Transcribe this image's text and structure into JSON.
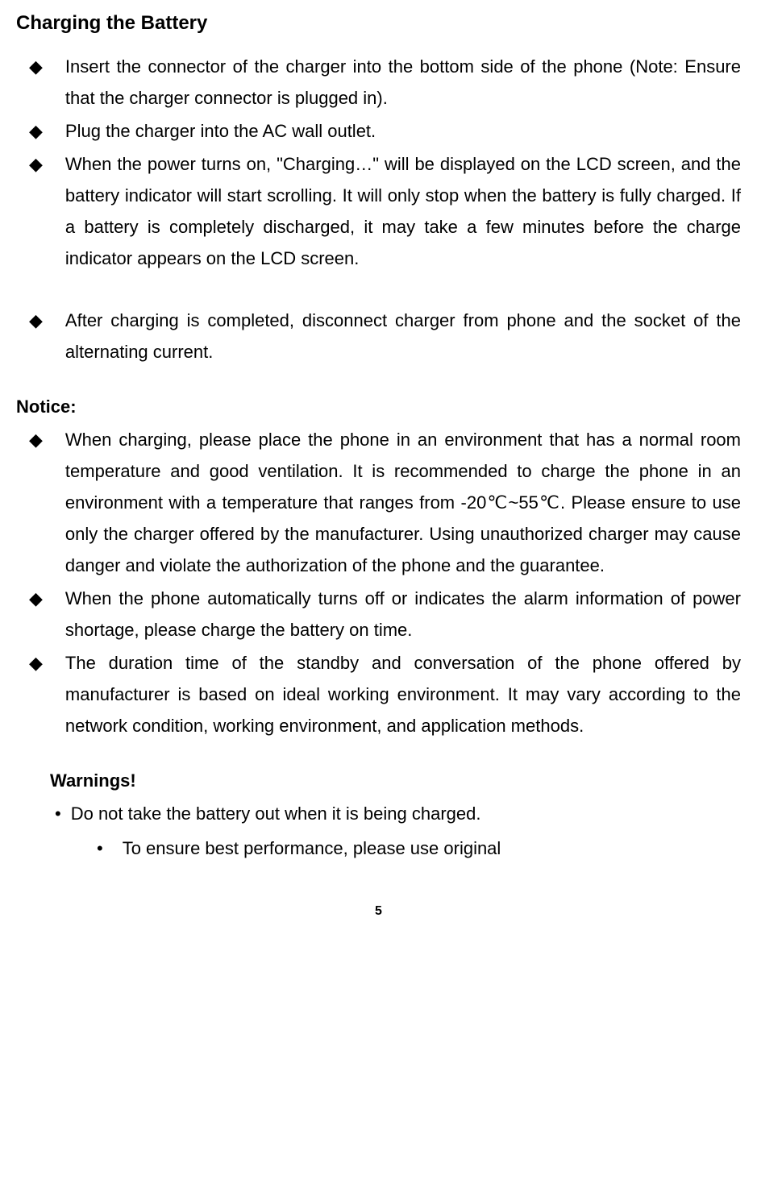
{
  "heading": "Charging the Battery",
  "bullets_main": [
    "Insert the connector of the charger into the bottom side of the phone (Note: Ensure that the charger connector is plugged in).",
    "Plug the charger into the AC wall outlet.",
    "When the power turns on, \"Charging…\" will be displayed on the LCD screen, and the battery indicator will start scrolling. It will only stop when the battery is fully charged. If a battery is completely discharged, it may take a few minutes before the charge indicator appears on the LCD screen."
  ],
  "bullet_after_gap": "After charging is completed, disconnect charger from phone and the socket of the alternating current.",
  "notice_heading": "Notice:",
  "notice_bullets": [
    "When charging, please place the phone in an environment that has a normal room temperature and good ventilation. It is recommended to charge the phone in an environment with a temperature that ranges from -20℃~55℃. Please ensure to use only the charger offered by the manufacturer. Using unauthorized charger may cause danger and violate the authorization of the phone and the guarantee.",
    "When the phone automatically turns off or indicates the alarm information of power shortage, please charge the battery on time.",
    "The duration time of the standby and conversation of the phone offered by manufacturer is based on ideal working environment. It may vary according to the network condition, working environment, and application methods."
  ],
  "warnings_heading": "Warnings!",
  "warning_bullet_1": "Do not take the battery out when it is being charged.",
  "warning_bullet_2": "To ensure best performance, please use original",
  "page_number": "5",
  "diamond_char": "◆",
  "dot_char": "•"
}
